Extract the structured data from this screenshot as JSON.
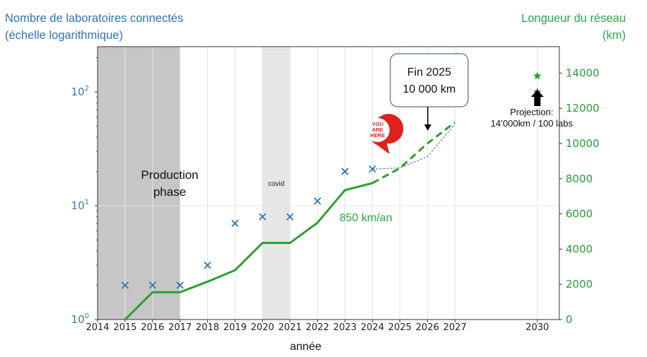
{
  "left_axis_label": "Nombre de laboratoires connectés\n(échelle logarithmique)",
  "right_axis_label": "Longueur du réseau\n(km)",
  "x_axis_label": "année",
  "annotations": {
    "production": "Production\nphase",
    "covid": "covid",
    "rate": "850 km/an",
    "callout": "Fin 2025\n10 000 km",
    "pin": "YOU\nARE\nHERE",
    "projection": "Projection:\n14’000km / 100 labs"
  },
  "colors": {
    "labs": "#2e75b6",
    "network": "#2ca02c",
    "production_band": "#c6c6c6",
    "covid_band": "#e6e6e6",
    "pin": "#e0201b"
  },
  "chart_data": {
    "type": "line",
    "x_ticks": [
      2014,
      2015,
      2016,
      2017,
      2018,
      2019,
      2020,
      2021,
      2022,
      2023,
      2024,
      2025,
      2026,
      2027,
      2030
    ],
    "xlim": [
      2014,
      2030.8
    ],
    "left_axis": {
      "scale": "log",
      "ylim": [
        1,
        250
      ],
      "ticks": [
        1,
        10,
        100
      ],
      "tick_labels": [
        "10",
        "10",
        "10"
      ],
      "tick_exponents": [
        "0",
        "1",
        "2"
      ]
    },
    "right_axis": {
      "ylim": [
        0,
        15500
      ],
      "ticks": [
        0,
        2000,
        4000,
        6000,
        8000,
        10000,
        12000,
        14000
      ]
    },
    "shaded_regions": [
      {
        "name": "production",
        "from": 2014,
        "to": 2017
      },
      {
        "name": "covid",
        "from": 2020,
        "to": 2021
      }
    ],
    "labs_points": {
      "x": [
        2015,
        2016,
        2017,
        2018,
        2019,
        2020,
        2021,
        2022,
        2023,
        2024
      ],
      "y": [
        2,
        2,
        2,
        3,
        7,
        8,
        8,
        11,
        20,
        21
      ]
    },
    "labs_projection": {
      "x": [
        2024,
        2025,
        2026,
        2027
      ],
      "y": [
        21,
        21.5,
        27,
        52
      ]
    },
    "network_actual": {
      "x": [
        2015,
        2016,
        2017,
        2018,
        2019,
        2020,
        2021,
        2022,
        2023,
        2024
      ],
      "y": [
        0,
        1550,
        1550,
        2150,
        2800,
        4350,
        4350,
        5500,
        7350,
        7750
      ]
    },
    "network_projection": {
      "x": [
        2024,
        2025,
        2026,
        2027
      ],
      "y": [
        7750,
        8600,
        10000,
        11200
      ]
    },
    "projection_2030": {
      "x": 2030,
      "labs": 100,
      "network_km": 14000
    }
  }
}
